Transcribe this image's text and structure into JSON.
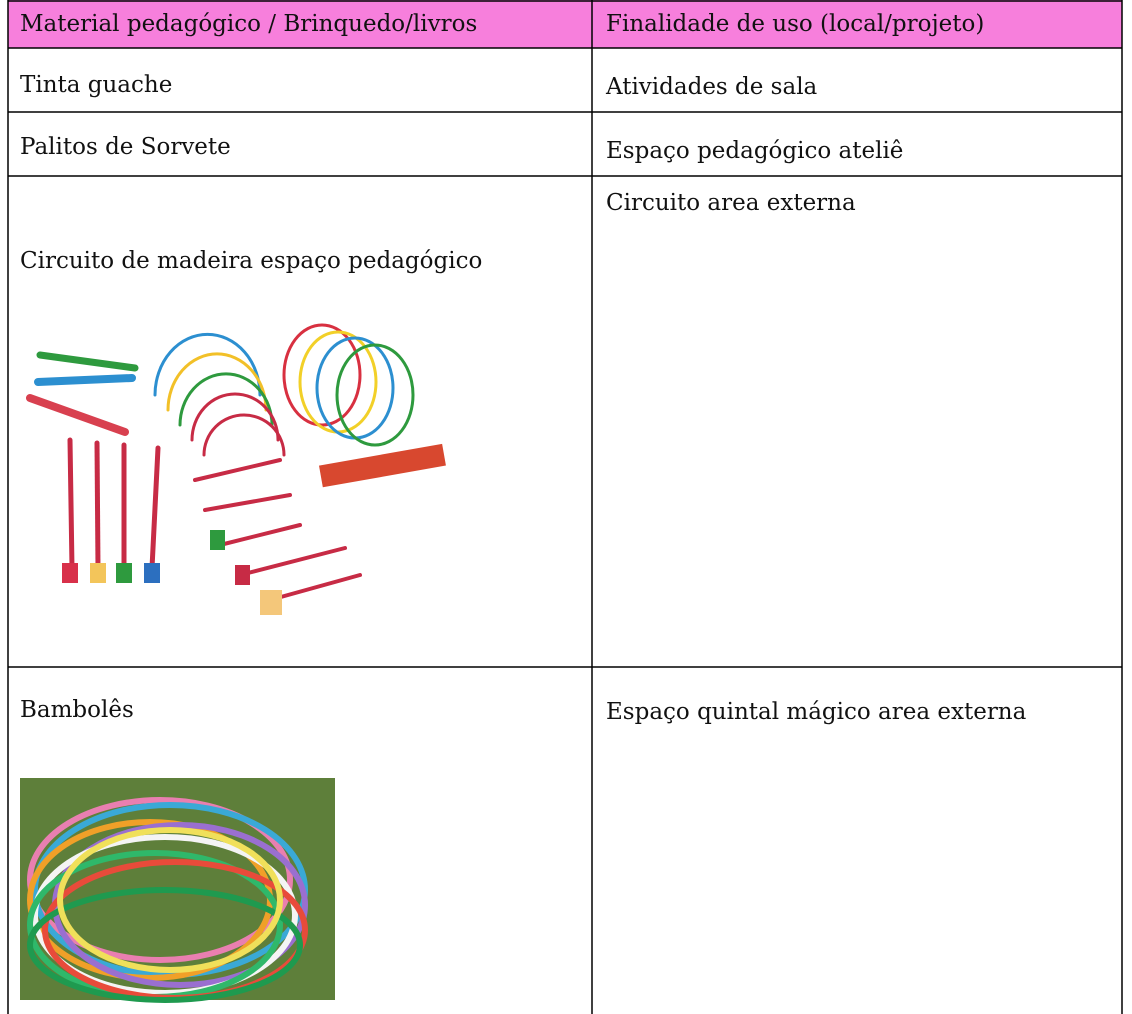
{
  "table": {
    "header": [
      "Material pedagógico / Brinquedo/livros",
      "Finalidade de uso (local/projeto)"
    ],
    "rows": [
      [
        "Tinta guache",
        "Atividades de sala"
      ],
      [
        "Palitos de Sorvete",
        "Espaço pedagógico ateliê"
      ],
      [
        "Circuito de madeira espaço pedagógico",
        "Circuito area externa"
      ],
      [
        "Bambolês",
        "Espaço quintal mágico area externa"
      ]
    ]
  }
}
